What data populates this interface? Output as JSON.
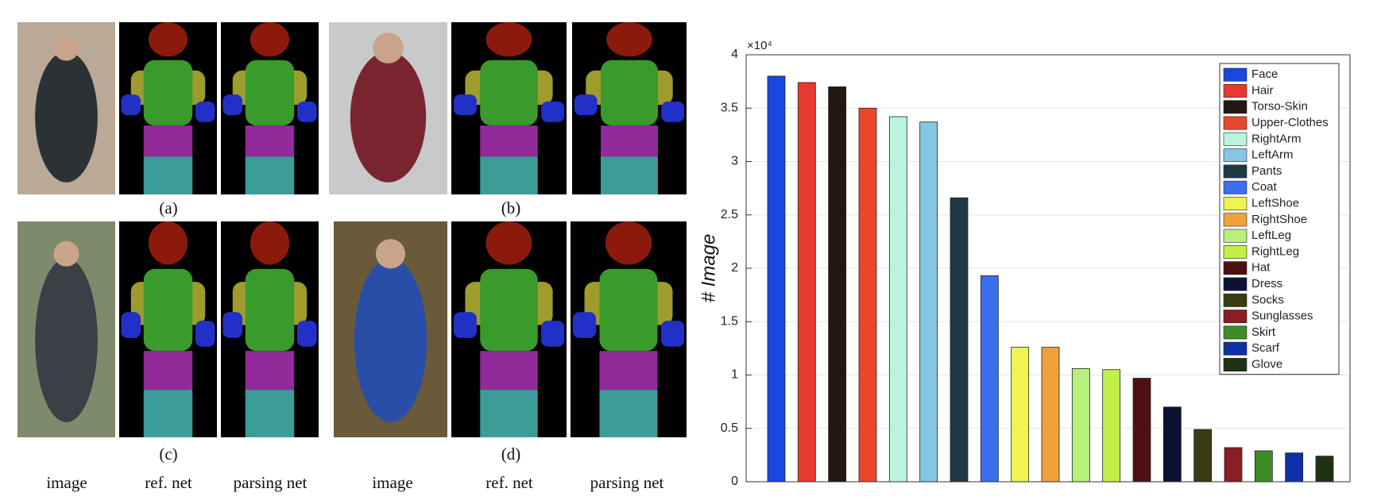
{
  "figure": {
    "panel_labels": [
      "(a)",
      "(b)",
      "(c)",
      "(d)"
    ],
    "captions": [
      "image",
      "ref. net",
      "parsing net",
      "image",
      "ref. net",
      "parsing net"
    ]
  },
  "chart_data": {
    "type": "bar",
    "ylabel": "# Image",
    "y_multiplier_label": "×10⁴",
    "categories": [
      "Face",
      "Hair",
      "Torso-Skin",
      "Upper-Clothes",
      "RightArm",
      "LeftArm",
      "Pants",
      "Coat",
      "LeftShoe",
      "RightShoe",
      "LeftLeg",
      "RightLeg",
      "Hat",
      "Dress",
      "Socks",
      "Sunglasses",
      "Skirt",
      "Scarf",
      "Glove"
    ],
    "values": [
      3.8,
      3.74,
      3.7,
      3.5,
      3.42,
      3.37,
      2.66,
      1.93,
      1.26,
      1.26,
      1.06,
      1.05,
      0.97,
      0.7,
      0.49,
      0.32,
      0.29,
      0.27,
      0.24
    ],
    "colors": [
      "#1a47e0",
      "#e8392f",
      "#231712",
      "#e8472c",
      "#b9f5dc",
      "#84c6e4",
      "#1b3a44",
      "#3a6ff0",
      "#f1f253",
      "#eda23c",
      "#b7f07a",
      "#c2f048",
      "#4e1111",
      "#0b1233",
      "#3c3c12",
      "#8b1e22",
      "#3f8c26",
      "#0d2fa8",
      "#1f3314"
    ],
    "ylim": [
      0,
      4
    ],
    "yticks": [
      0,
      0.5,
      1,
      1.5,
      2,
      2.5,
      3,
      3.5,
      4
    ],
    "grid": true,
    "legend": "upper right"
  }
}
